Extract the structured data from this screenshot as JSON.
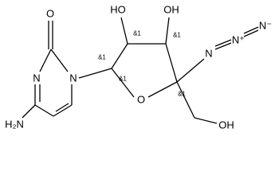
{
  "atoms": [
    "O",
    "N",
    "N",
    "H₂N",
    "O",
    "HO",
    "OH",
    "N",
    "N⁺",
    "N⁻",
    "OH"
  ],
  "stereo": [
    "&1",
    "&1",
    "&1",
    "&1",
    "&1"
  ]
}
